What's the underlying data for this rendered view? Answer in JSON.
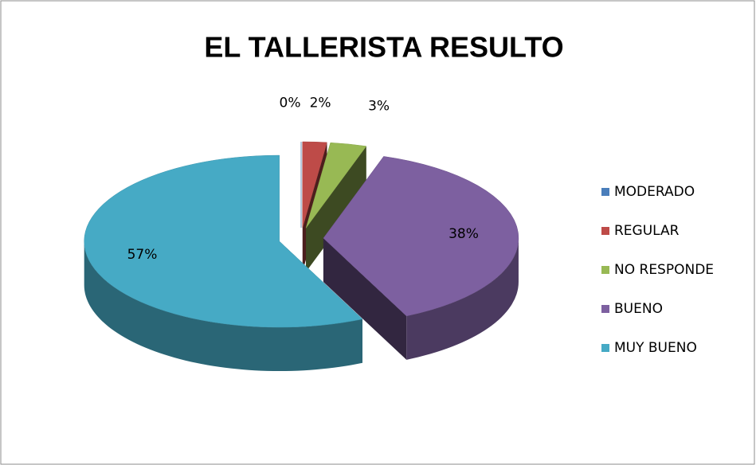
{
  "chart_data": {
    "type": "pie",
    "title": "EL TALLERISTA RESULTO",
    "categories": [
      "MODERADO",
      "REGULAR",
      "NO RESPONDE",
      "BUENO",
      "MUY BUENO"
    ],
    "values": [
      0,
      2,
      3,
      38,
      57
    ],
    "value_labels": [
      "0%",
      "2%",
      "3%",
      "38%",
      "57%"
    ],
    "colors": [
      "#4a7ebb",
      "#be4b48",
      "#98b954",
      "#7d60a0",
      "#46aac5"
    ],
    "legend": "right"
  }
}
